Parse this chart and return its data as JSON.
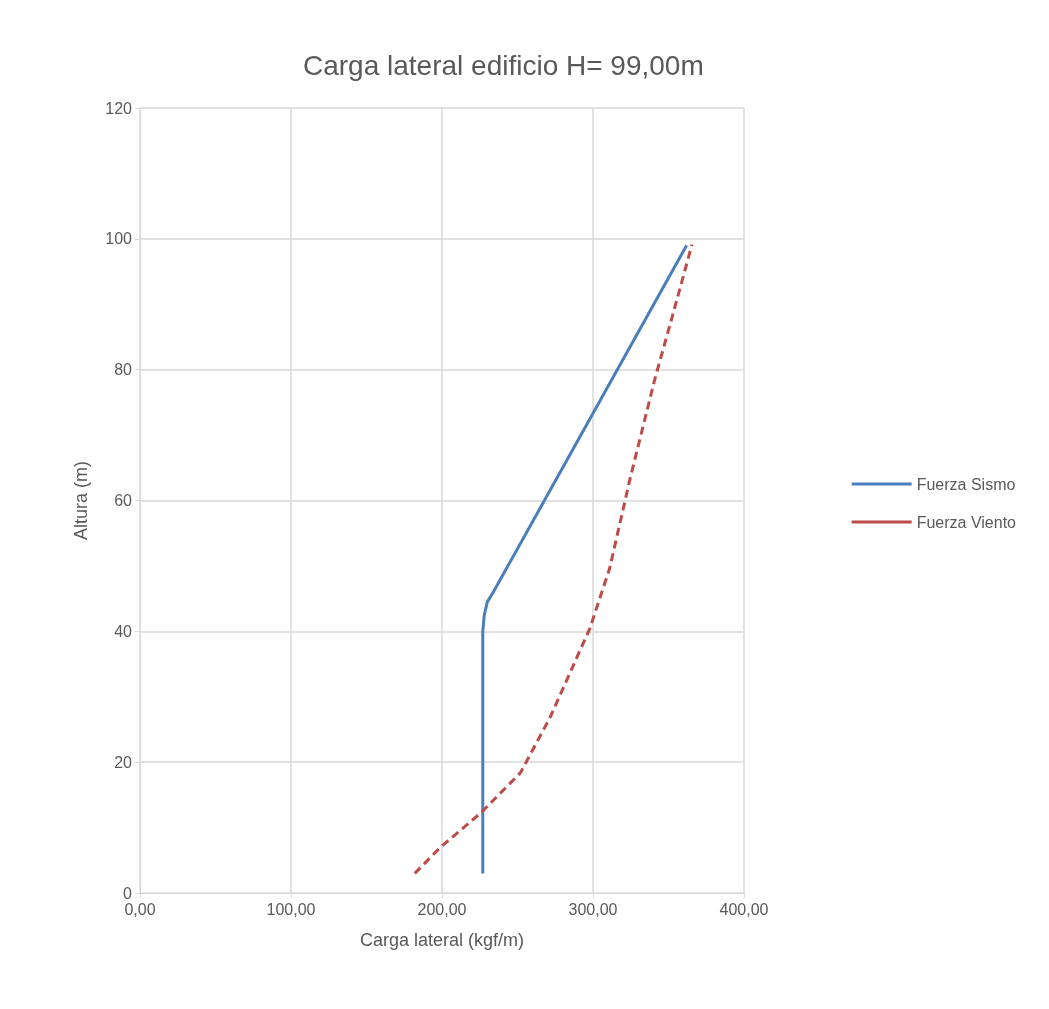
{
  "chart_data": {
    "type": "line",
    "title": "Carga lateral edificio H= 99,00m",
    "xlabel": "Carga lateral (kgf/m)",
    "ylabel": "Altura (m)",
    "xlim": [
      0,
      400
    ],
    "xticks": [
      {
        "value": 0,
        "label": "0,00"
      },
      {
        "value": 100,
        "label": "100,00"
      },
      {
        "value": 200,
        "label": "200,00"
      },
      {
        "value": 300,
        "label": "300,00"
      },
      {
        "value": 400,
        "label": "400,00"
      }
    ],
    "ylim": [
      0,
      120
    ],
    "yticks": [
      0,
      20,
      40,
      60,
      80,
      100,
      120
    ],
    "grid": true,
    "legend": "right",
    "marker": "none",
    "series": [
      {
        "name": "Fuerza Sismo",
        "color": "#4a7ebb",
        "line_style": "solid",
        "x": [
          227,
          227,
          228,
          230,
          234,
          362
        ],
        "values": [
          3,
          40,
          42.5,
          44.5,
          46,
          99
        ]
      },
      {
        "name": "Fuerza Viento",
        "color": "#be4b48",
        "line_style": "dashed",
        "x": [
          182,
          199,
          226,
          252,
          271.5,
          298,
          311,
          324.5,
          341,
          352,
          365.5
        ],
        "values": [
          3,
          7,
          12.3,
          18.4,
          26.8,
          40.5,
          49.6,
          63.3,
          78.6,
          87.7,
          99.1
        ]
      }
    ]
  }
}
